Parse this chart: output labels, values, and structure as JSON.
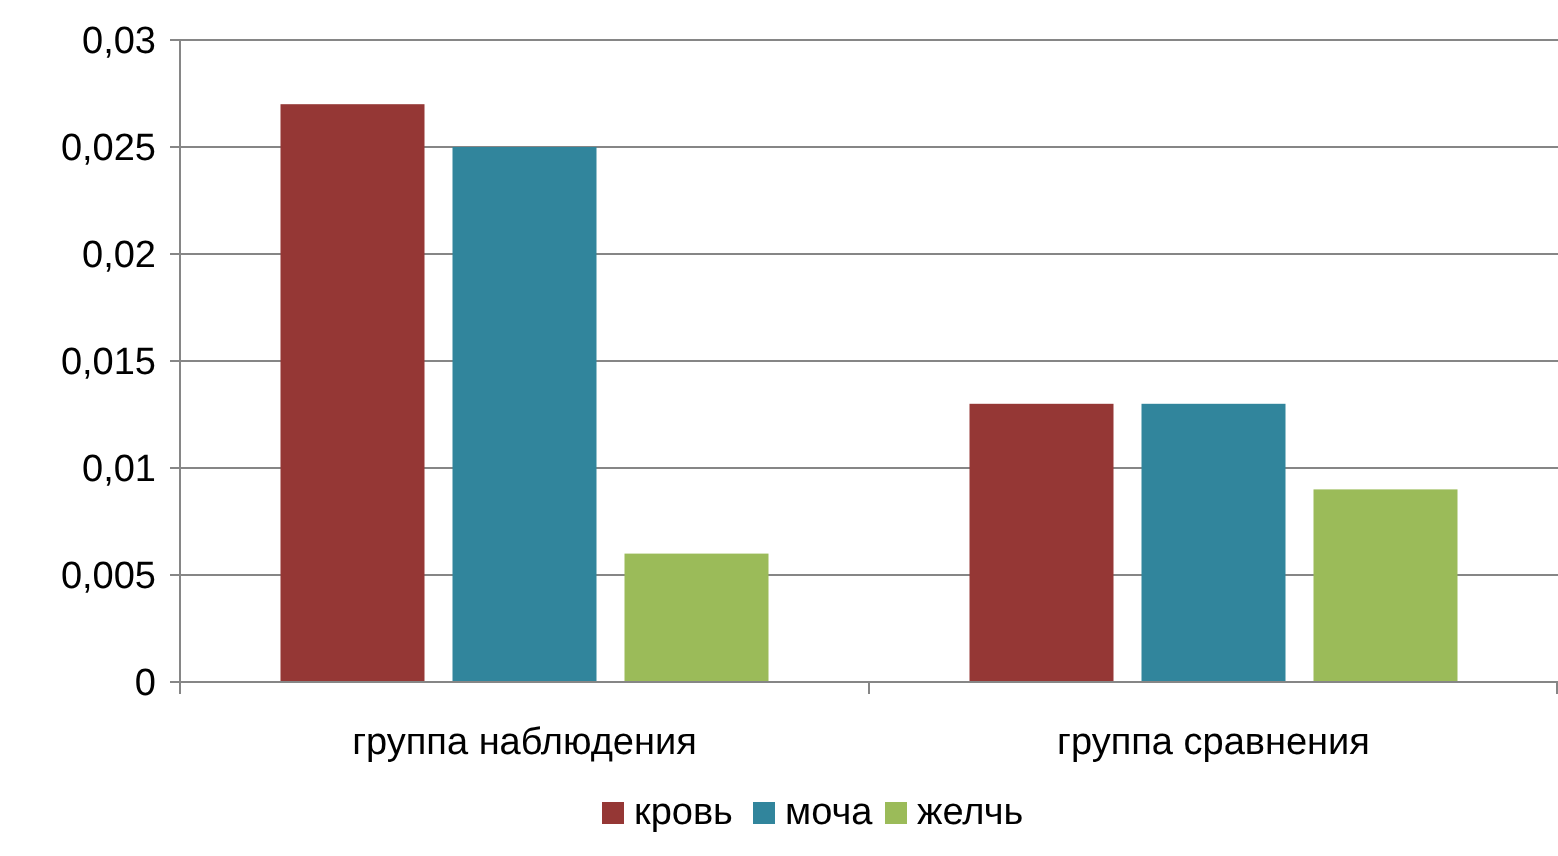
{
  "chart_data": {
    "type": "bar",
    "categories": [
      "группа наблюдения",
      "группа сравнения"
    ],
    "series": [
      {
        "name": "кровь",
        "color": "#953735",
        "values": [
          0.027,
          0.013
        ]
      },
      {
        "name": "моча",
        "color": "#31859c",
        "values": [
          0.025,
          0.013
        ]
      },
      {
        "name": "желчь",
        "color": "#9bbb59",
        "values": [
          0.006,
          0.009
        ]
      }
    ],
    "ylim": [
      0,
      0.03
    ],
    "yticks": [
      {
        "value": 0,
        "label": "0"
      },
      {
        "value": 0.005,
        "label": "0,005"
      },
      {
        "value": 0.01,
        "label": "0,01"
      },
      {
        "value": 0.015,
        "label": "0,015"
      },
      {
        "value": 0.02,
        "label": "0,02"
      },
      {
        "value": 0.025,
        "label": "0,025"
      },
      {
        "value": 0.03,
        "label": "0,03"
      }
    ],
    "grid": "y",
    "legend": "bottom"
  }
}
